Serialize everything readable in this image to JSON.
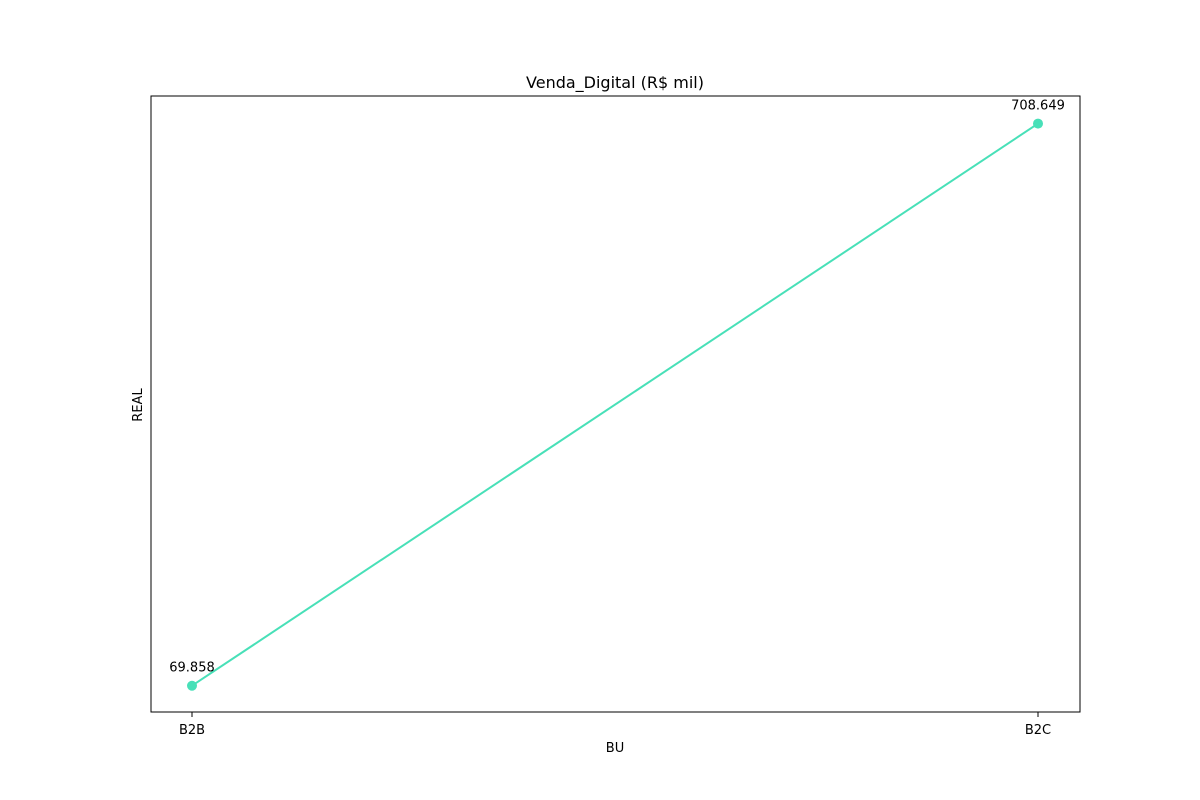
{
  "chart_data": {
    "type": "line",
    "title": "Venda_Digital (R$ mil)",
    "xlabel": "BU",
    "ylabel": "REAL",
    "categories": [
      "B2B",
      "B2C"
    ],
    "series": [
      {
        "values": [
          69.858,
          708.649
        ],
        "data_labels": [
          "69.858",
          "708.649"
        ],
        "color": "#48e0b8"
      }
    ],
    "ylim": [
      40,
      740
    ],
    "grid": false,
    "y_ticks_visible": false,
    "markers": true
  }
}
